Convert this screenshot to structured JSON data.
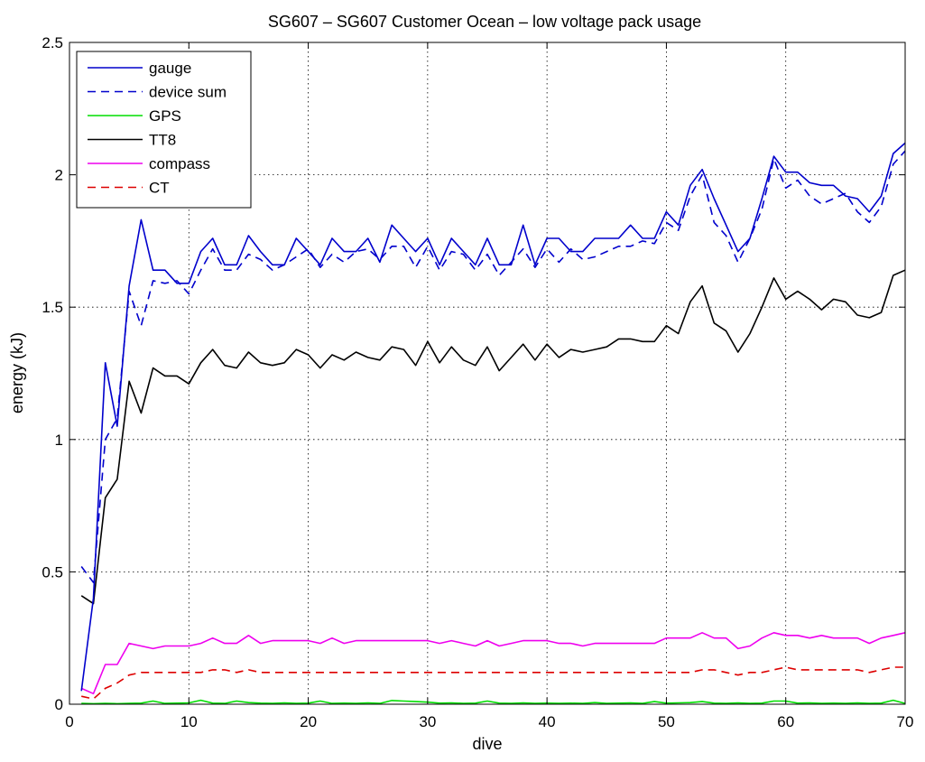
{
  "chart_data": {
    "type": "line",
    "title": "SG607 – SG607 Customer Ocean – low voltage pack usage",
    "xlabel": "dive",
    "ylabel": "energy (kJ)",
    "xlim": [
      0,
      70
    ],
    "ylim": [
      0,
      2.5
    ],
    "xticks": [
      "0",
      "10",
      "20",
      "30",
      "40",
      "50",
      "60",
      "70"
    ],
    "yticks": [
      "0",
      "0.5",
      "1",
      "1.5",
      "2",
      "2.5"
    ],
    "grid": true,
    "legend_position": "top-left",
    "series": [
      {
        "name": "gauge",
        "color": "#0000cc",
        "style": "solid",
        "x": [
          1,
          2,
          3,
          4,
          5,
          6,
          7,
          8,
          9,
          10,
          11,
          12,
          13,
          14,
          15,
          16,
          17,
          18,
          19,
          20,
          21,
          22,
          23,
          24,
          25,
          26,
          27,
          28,
          29,
          30,
          31,
          32,
          33,
          34,
          35,
          36,
          37,
          38,
          39,
          40,
          41,
          42,
          43,
          44,
          45,
          46,
          47,
          48,
          49,
          50,
          51,
          52,
          53,
          54,
          55,
          56,
          57,
          58,
          59,
          60,
          61,
          62,
          63,
          64,
          65,
          66,
          67,
          68,
          69,
          70
        ],
        "y": [
          0.05,
          0.4,
          1.29,
          1.05,
          1.58,
          1.83,
          1.64,
          1.64,
          1.59,
          1.59,
          1.71,
          1.76,
          1.66,
          1.66,
          1.77,
          1.71,
          1.66,
          1.66,
          1.76,
          1.71,
          1.66,
          1.76,
          1.71,
          1.71,
          1.76,
          1.67,
          1.81,
          1.76,
          1.71,
          1.76,
          1.66,
          1.76,
          1.71,
          1.66,
          1.76,
          1.66,
          1.66,
          1.81,
          1.66,
          1.76,
          1.76,
          1.71,
          1.71,
          1.76,
          1.76,
          1.76,
          1.81,
          1.76,
          1.76,
          1.86,
          1.81,
          1.96,
          2.02,
          1.91,
          1.81,
          1.71,
          1.76,
          1.91,
          2.07,
          2.01,
          2.01,
          1.97,
          1.96,
          1.96,
          1.92,
          1.91,
          1.86,
          1.92,
          2.08,
          2.12
        ]
      },
      {
        "name": "device sum",
        "color": "#0000cc",
        "style": "dashed",
        "x": [
          1,
          2,
          3,
          4,
          5,
          6,
          7,
          8,
          9,
          10,
          11,
          12,
          13,
          14,
          15,
          16,
          17,
          18,
          19,
          20,
          21,
          22,
          23,
          24,
          25,
          26,
          27,
          28,
          29,
          30,
          31,
          32,
          33,
          34,
          35,
          36,
          37,
          38,
          39,
          40,
          41,
          42,
          43,
          44,
          45,
          46,
          47,
          48,
          49,
          50,
          51,
          52,
          53,
          54,
          55,
          56,
          57,
          58,
          59,
          60,
          61,
          62,
          63,
          64,
          65,
          66,
          67,
          68,
          69,
          70
        ],
        "y": [
          0.52,
          0.46,
          1.0,
          1.08,
          1.56,
          1.43,
          1.6,
          1.59,
          1.6,
          1.55,
          1.64,
          1.72,
          1.64,
          1.64,
          1.7,
          1.68,
          1.64,
          1.66,
          1.69,
          1.72,
          1.65,
          1.7,
          1.67,
          1.71,
          1.72,
          1.68,
          1.73,
          1.73,
          1.65,
          1.73,
          1.64,
          1.71,
          1.7,
          1.64,
          1.7,
          1.62,
          1.67,
          1.72,
          1.65,
          1.72,
          1.67,
          1.72,
          1.68,
          1.69,
          1.71,
          1.73,
          1.73,
          1.75,
          1.74,
          1.82,
          1.79,
          1.92,
          2.0,
          1.82,
          1.77,
          1.67,
          1.76,
          1.87,
          2.06,
          1.95,
          1.98,
          1.92,
          1.89,
          1.91,
          1.93,
          1.86,
          1.82,
          1.88,
          2.04,
          2.09
        ]
      },
      {
        "name": "GPS",
        "color": "#00dd00",
        "style": "solid",
        "x": [
          1,
          2,
          3,
          4,
          5,
          6,
          7,
          8,
          9,
          10,
          11,
          12,
          13,
          14,
          15,
          16,
          17,
          18,
          19,
          20,
          21,
          22,
          23,
          24,
          25,
          26,
          27,
          28,
          29,
          30,
          31,
          32,
          33,
          34,
          35,
          36,
          37,
          38,
          39,
          40,
          41,
          42,
          43,
          44,
          45,
          46,
          47,
          48,
          49,
          50,
          51,
          52,
          53,
          54,
          55,
          56,
          57,
          58,
          59,
          60,
          61,
          62,
          63,
          64,
          65,
          66,
          67,
          68,
          69,
          70
        ],
        "y": [
          0.003,
          0.002,
          0.003,
          0.002,
          0.003,
          0.004,
          0.012,
          0.003,
          0.004,
          0.005,
          0.015,
          0.004,
          0.003,
          0.012,
          0.006,
          0.004,
          0.003,
          0.005,
          0.003,
          0.004,
          0.012,
          0.003,
          0.004,
          0.003,
          0.005,
          0.003,
          0.014,
          0.012,
          0.01,
          0.008,
          0.004,
          0.005,
          0.003,
          0.004,
          0.012,
          0.004,
          0.003,
          0.005,
          0.003,
          0.004,
          0.003,
          0.004,
          0.003,
          0.006,
          0.003,
          0.004,
          0.005,
          0.003,
          0.01,
          0.004,
          0.005,
          0.006,
          0.01,
          0.004,
          0.003,
          0.005,
          0.003,
          0.004,
          0.012,
          0.012,
          0.004,
          0.005,
          0.003,
          0.004,
          0.003,
          0.005,
          0.003,
          0.004,
          0.015,
          0.003
        ]
      },
      {
        "name": "TT8",
        "color": "#000000",
        "style": "solid",
        "x": [
          1,
          2,
          3,
          4,
          5,
          6,
          7,
          8,
          9,
          10,
          11,
          12,
          13,
          14,
          15,
          16,
          17,
          18,
          19,
          20,
          21,
          22,
          23,
          24,
          25,
          26,
          27,
          28,
          29,
          30,
          31,
          32,
          33,
          34,
          35,
          36,
          37,
          38,
          39,
          40,
          41,
          42,
          43,
          44,
          45,
          46,
          47,
          48,
          49,
          50,
          51,
          52,
          53,
          54,
          55,
          56,
          57,
          58,
          59,
          60,
          61,
          62,
          63,
          64,
          65,
          66,
          67,
          68,
          69,
          70
        ],
        "y": [
          0.41,
          0.38,
          0.78,
          0.85,
          1.22,
          1.1,
          1.27,
          1.24,
          1.24,
          1.21,
          1.29,
          1.34,
          1.28,
          1.27,
          1.33,
          1.29,
          1.28,
          1.29,
          1.34,
          1.32,
          1.27,
          1.32,
          1.3,
          1.33,
          1.31,
          1.3,
          1.35,
          1.34,
          1.28,
          1.37,
          1.29,
          1.35,
          1.3,
          1.28,
          1.35,
          1.26,
          1.31,
          1.36,
          1.3,
          1.36,
          1.31,
          1.34,
          1.33,
          1.34,
          1.35,
          1.38,
          1.38,
          1.37,
          1.37,
          1.43,
          1.4,
          1.52,
          1.58,
          1.44,
          1.41,
          1.33,
          1.4,
          1.5,
          1.61,
          1.53,
          1.56,
          1.53,
          1.49,
          1.53,
          1.52,
          1.47,
          1.46,
          1.48,
          1.62,
          1.64
        ]
      },
      {
        "name": "compass",
        "color": "#ee00ee",
        "style": "solid",
        "x": [
          1,
          2,
          3,
          4,
          5,
          6,
          7,
          8,
          9,
          10,
          11,
          12,
          13,
          14,
          15,
          16,
          17,
          18,
          19,
          20,
          21,
          22,
          23,
          24,
          25,
          26,
          27,
          28,
          29,
          30,
          31,
          32,
          33,
          34,
          35,
          36,
          37,
          38,
          39,
          40,
          41,
          42,
          43,
          44,
          45,
          46,
          47,
          48,
          49,
          50,
          51,
          52,
          53,
          54,
          55,
          56,
          57,
          58,
          59,
          60,
          61,
          62,
          63,
          64,
          65,
          66,
          67,
          68,
          69,
          70
        ],
        "y": [
          0.06,
          0.04,
          0.15,
          0.15,
          0.23,
          0.22,
          0.21,
          0.22,
          0.22,
          0.22,
          0.23,
          0.25,
          0.23,
          0.23,
          0.26,
          0.23,
          0.24,
          0.24,
          0.24,
          0.24,
          0.23,
          0.25,
          0.23,
          0.24,
          0.24,
          0.24,
          0.24,
          0.24,
          0.24,
          0.24,
          0.23,
          0.24,
          0.23,
          0.22,
          0.24,
          0.22,
          0.23,
          0.24,
          0.24,
          0.24,
          0.23,
          0.23,
          0.22,
          0.23,
          0.23,
          0.23,
          0.23,
          0.23,
          0.23,
          0.25,
          0.25,
          0.25,
          0.27,
          0.25,
          0.25,
          0.21,
          0.22,
          0.25,
          0.27,
          0.26,
          0.26,
          0.25,
          0.26,
          0.25,
          0.25,
          0.25,
          0.23,
          0.25,
          0.26,
          0.27
        ]
      },
      {
        "name": "CT",
        "color": "#dd0000",
        "style": "dashed",
        "x": [
          1,
          2,
          3,
          4,
          5,
          6,
          7,
          8,
          9,
          10,
          11,
          12,
          13,
          14,
          15,
          16,
          17,
          18,
          19,
          20,
          21,
          22,
          23,
          24,
          25,
          26,
          27,
          28,
          29,
          30,
          31,
          32,
          33,
          34,
          35,
          36,
          37,
          38,
          39,
          40,
          41,
          42,
          43,
          44,
          45,
          46,
          47,
          48,
          49,
          50,
          51,
          52,
          53,
          54,
          55,
          56,
          57,
          58,
          59,
          60,
          61,
          62,
          63,
          64,
          65,
          66,
          67,
          68,
          69,
          70
        ],
        "y": [
          0.03,
          0.02,
          0.06,
          0.08,
          0.11,
          0.12,
          0.12,
          0.12,
          0.12,
          0.12,
          0.12,
          0.13,
          0.13,
          0.12,
          0.13,
          0.12,
          0.12,
          0.12,
          0.12,
          0.12,
          0.12,
          0.12,
          0.12,
          0.12,
          0.12,
          0.12,
          0.12,
          0.12,
          0.12,
          0.12,
          0.12,
          0.12,
          0.12,
          0.12,
          0.12,
          0.12,
          0.12,
          0.12,
          0.12,
          0.12,
          0.12,
          0.12,
          0.12,
          0.12,
          0.12,
          0.12,
          0.12,
          0.12,
          0.12,
          0.12,
          0.12,
          0.12,
          0.13,
          0.13,
          0.12,
          0.11,
          0.12,
          0.12,
          0.13,
          0.14,
          0.13,
          0.13,
          0.13,
          0.13,
          0.13,
          0.13,
          0.12,
          0.13,
          0.14,
          0.14
        ]
      }
    ]
  }
}
